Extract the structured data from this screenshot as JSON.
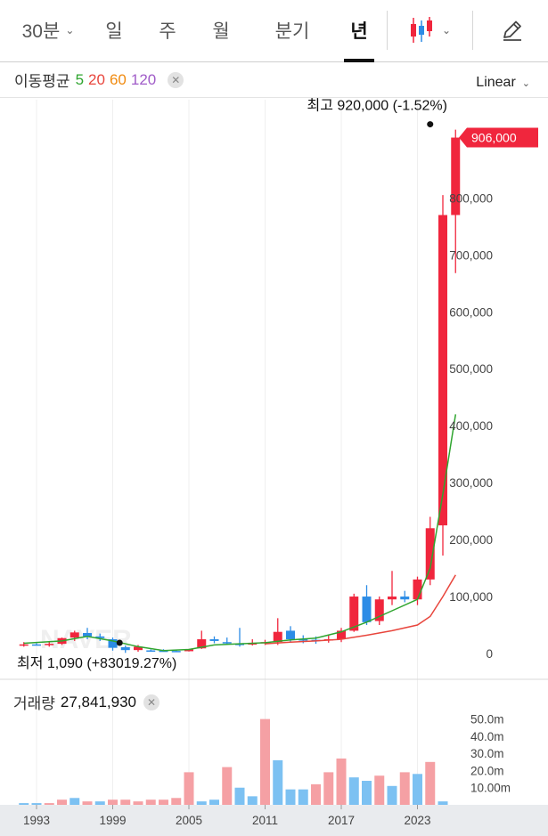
{
  "tabs": [
    {
      "label": "30분",
      "dropdown": true
    },
    {
      "label": "일"
    },
    {
      "label": "주"
    },
    {
      "label": "월"
    },
    {
      "label": "분기"
    },
    {
      "label": "년",
      "active": true
    }
  ],
  "icons": {
    "chart_type": "candlestick-icon",
    "edit": "pencil-icon"
  },
  "ma_legend": {
    "title": "이동평균",
    "periods": [
      {
        "value": "5",
        "color": "#2fa52f"
      },
      {
        "value": "20",
        "color": "#e8453c"
      },
      {
        "value": "60",
        "color": "#f08a0f"
      },
      {
        "value": "120",
        "color": "#a05cc8"
      }
    ]
  },
  "scale": "Linear",
  "colors": {
    "up": "#f0263d",
    "down": "#2c8ce6",
    "vol_up": "#f5a0a4",
    "vol_down": "#7cc1f2",
    "ma5": "#2fa52f",
    "ma20": "#e8453c"
  },
  "volume": {
    "title": "거래량",
    "value": "27,841,930"
  },
  "chart_data": [
    {
      "type": "candlestick",
      "scale": "linear",
      "ylim": [
        -25000,
        960000
      ],
      "y_ticks": [
        "0",
        "100,000",
        "200,000",
        "300,000",
        "400,000",
        "500,000",
        "600,000",
        "700,000",
        "800,000"
      ],
      "y_tick_values": [
        0,
        100000,
        200000,
        300000,
        400000,
        500000,
        600000,
        700000,
        800000
      ],
      "x_ticks": [
        "1993",
        "1999",
        "2005",
        "2011",
        "2017",
        "2023"
      ],
      "x_tick_values": [
        1993,
        1999,
        2005,
        2011,
        2017,
        2023
      ],
      "current_price": {
        "label": "906,000",
        "value": 906000
      },
      "high_annotation": {
        "label": "최고 920,000 (-1.52%)",
        "value": 920000,
        "year": 2024
      },
      "low_annotation": {
        "label": "최저 1,090 (+83019.27%)",
        "value": 1090,
        "year": 1998
      },
      "candles": [
        {
          "year": 1992,
          "open": 15000,
          "high": 20000,
          "low": 12000,
          "close": 16000
        },
        {
          "year": 1993,
          "open": 16000,
          "high": 18000,
          "low": 14000,
          "close": 15000
        },
        {
          "year": 1994,
          "open": 15000,
          "high": 20000,
          "low": 12000,
          "close": 17000
        },
        {
          "year": 1995,
          "open": 17000,
          "high": 28000,
          "low": 15000,
          "close": 27000
        },
        {
          "year": 1996,
          "open": 28000,
          "high": 40000,
          "low": 22000,
          "close": 37000
        },
        {
          "year": 1997,
          "open": 36000,
          "high": 45000,
          "low": 25000,
          "close": 30000
        },
        {
          "year": 1998,
          "open": 30000,
          "high": 35000,
          "low": 22000,
          "close": 27000
        },
        {
          "year": 1999,
          "open": 25000,
          "high": 28000,
          "low": 5000,
          "close": 10000
        },
        {
          "year": 2000,
          "open": 11000,
          "high": 14000,
          "low": 1090,
          "close": 6000
        },
        {
          "year": 2001,
          "open": 6000,
          "high": 15000,
          "low": 3000,
          "close": 12000
        },
        {
          "year": 2002,
          "open": 5500,
          "high": 7000,
          "low": 4000,
          "close": 5000
        },
        {
          "year": 2003,
          "open": 5000,
          "high": 7500,
          "low": 4000,
          "close": 4500
        },
        {
          "year": 2004,
          "open": 4500,
          "high": 6000,
          "low": 3500,
          "close": 4000
        },
        {
          "year": 2005,
          "open": 4000,
          "high": 8000,
          "low": 3500,
          "close": 7000
        },
        {
          "year": 2006,
          "open": 9000,
          "high": 40000,
          "low": 8000,
          "close": 25000
        },
        {
          "year": 2007,
          "open": 25000,
          "high": 30000,
          "low": 18000,
          "close": 22000
        },
        {
          "year": 2008,
          "open": 20000,
          "high": 28000,
          "low": 15000,
          "close": 18000
        },
        {
          "year": 2009,
          "open": 17000,
          "high": 45000,
          "low": 12000,
          "close": 15000
        },
        {
          "year": 2010,
          "open": 16000,
          "high": 25000,
          "low": 14000,
          "close": 18000
        },
        {
          "year": 2011,
          "open": 18000,
          "high": 24000,
          "low": 15000,
          "close": 20000
        },
        {
          "year": 2012,
          "open": 20000,
          "high": 62000,
          "low": 15000,
          "close": 38000
        },
        {
          "year": 2013,
          "open": 40000,
          "high": 48000,
          "low": 20000,
          "close": 25000
        },
        {
          "year": 2014,
          "open": 25000,
          "high": 32000,
          "low": 18000,
          "close": 24000
        },
        {
          "year": 2015,
          "open": 24000,
          "high": 30000,
          "low": 17000,
          "close": 23000
        },
        {
          "year": 2016,
          "open": 23000,
          "high": 32000,
          "low": 19000,
          "close": 25000
        },
        {
          "year": 2017,
          "open": 25000,
          "high": 45000,
          "low": 20000,
          "close": 40000
        },
        {
          "year": 2018,
          "open": 40000,
          "high": 105000,
          "low": 38000,
          "close": 100000
        },
        {
          "year": 2019,
          "open": 100000,
          "high": 120000,
          "low": 50000,
          "close": 55000
        },
        {
          "year": 2020,
          "open": 57000,
          "high": 100000,
          "low": 50000,
          "close": 95000
        },
        {
          "year": 2021,
          "open": 95000,
          "high": 145000,
          "low": 85000,
          "close": 100000
        },
        {
          "year": 2022,
          "open": 100000,
          "high": 110000,
          "low": 90000,
          "close": 95000
        },
        {
          "year": 2023,
          "open": 95000,
          "high": 135000,
          "low": 85000,
          "close": 130000
        },
        {
          "year": 2024,
          "open": 130000,
          "high": 240000,
          "low": 120000,
          "close": 220000
        },
        {
          "year": 2025,
          "open": 225000,
          "high": 805000,
          "low": 172000,
          "close": 770000
        },
        {
          "year": 2026,
          "open": 770000,
          "high": 920000,
          "low": 668000,
          "close": 906000
        }
      ],
      "ma5": [
        {
          "year": 1992,
          "value": 18000
        },
        {
          "year": 1995,
          "value": 22000
        },
        {
          "year": 1997,
          "value": 30000
        },
        {
          "year": 1999,
          "value": 22000
        },
        {
          "year": 2001,
          "value": 12000
        },
        {
          "year": 2003,
          "value": 5000
        },
        {
          "year": 2005,
          "value": 7000
        },
        {
          "year": 2007,
          "value": 15000
        },
        {
          "year": 2009,
          "value": 17000
        },
        {
          "year": 2011,
          "value": 19000
        },
        {
          "year": 2013,
          "value": 24000
        },
        {
          "year": 2015,
          "value": 27000
        },
        {
          "year": 2017,
          "value": 38000
        },
        {
          "year": 2019,
          "value": 55000
        },
        {
          "year": 2021,
          "value": 75000
        },
        {
          "year": 2023,
          "value": 95000
        },
        {
          "year": 2024,
          "value": 150000
        },
        {
          "year": 2025,
          "value": 280000
        },
        {
          "year": 2026,
          "value": 420000
        }
      ],
      "ma20": [
        {
          "year": 2011,
          "value": 17000
        },
        {
          "year": 2013,
          "value": 20000
        },
        {
          "year": 2015,
          "value": 22000
        },
        {
          "year": 2017,
          "value": 25000
        },
        {
          "year": 2019,
          "value": 32000
        },
        {
          "year": 2021,
          "value": 40000
        },
        {
          "year": 2023,
          "value": 50000
        },
        {
          "year": 2024,
          "value": 65000
        },
        {
          "year": 2025,
          "value": 100000
        },
        {
          "year": 2026,
          "value": 138000
        }
      ]
    },
    {
      "type": "bar",
      "title": "거래량",
      "ylim": [
        0,
        55
      ],
      "y_ticks": [
        "10.00m",
        "20.0m",
        "30.0m",
        "40.0m",
        "50.0m"
      ],
      "y_tick_values": [
        10,
        20,
        30,
        40,
        50
      ],
      "unit": "m",
      "x_ticks": [
        "1993",
        "1999",
        "2005",
        "2011",
        "2017",
        "2023"
      ],
      "bars": [
        {
          "year": 1992,
          "value": 1,
          "dir": "down"
        },
        {
          "year": 1993,
          "value": 1,
          "dir": "down"
        },
        {
          "year": 1994,
          "value": 1,
          "dir": "up"
        },
        {
          "year": 1995,
          "value": 3,
          "dir": "up"
        },
        {
          "year": 1996,
          "value": 4,
          "dir": "down"
        },
        {
          "year": 1997,
          "value": 2,
          "dir": "up"
        },
        {
          "year": 1998,
          "value": 2,
          "dir": "down"
        },
        {
          "year": 1999,
          "value": 3,
          "dir": "up"
        },
        {
          "year": 2000,
          "value": 3,
          "dir": "up"
        },
        {
          "year": 2001,
          "value": 2,
          "dir": "up"
        },
        {
          "year": 2002,
          "value": 3,
          "dir": "up"
        },
        {
          "year": 2003,
          "value": 3,
          "dir": "up"
        },
        {
          "year": 2004,
          "value": 4,
          "dir": "up"
        },
        {
          "year": 2005,
          "value": 19,
          "dir": "up"
        },
        {
          "year": 2006,
          "value": 2,
          "dir": "down"
        },
        {
          "year": 2007,
          "value": 3,
          "dir": "down"
        },
        {
          "year": 2008,
          "value": 22,
          "dir": "up"
        },
        {
          "year": 2009,
          "value": 10,
          "dir": "down"
        },
        {
          "year": 2010,
          "value": 5,
          "dir": "down"
        },
        {
          "year": 2011,
          "value": 50,
          "dir": "up"
        },
        {
          "year": 2012,
          "value": 26,
          "dir": "down"
        },
        {
          "year": 2013,
          "value": 9,
          "dir": "down"
        },
        {
          "year": 2014,
          "value": 9,
          "dir": "down"
        },
        {
          "year": 2015,
          "value": 12,
          "dir": "up"
        },
        {
          "year": 2016,
          "value": 19,
          "dir": "up"
        },
        {
          "year": 2017,
          "value": 27,
          "dir": "up"
        },
        {
          "year": 2018,
          "value": 16,
          "dir": "down"
        },
        {
          "year": 2019,
          "value": 14,
          "dir": "down"
        },
        {
          "year": 2020,
          "value": 17,
          "dir": "up"
        },
        {
          "year": 2021,
          "value": 11,
          "dir": "down"
        },
        {
          "year": 2022,
          "value": 19,
          "dir": "up"
        },
        {
          "year": 2023,
          "value": 18,
          "dir": "down"
        },
        {
          "year": 2024,
          "value": 25,
          "dir": "up"
        },
        {
          "year": 2025,
          "value": 2,
          "dir": "down"
        }
      ]
    }
  ]
}
